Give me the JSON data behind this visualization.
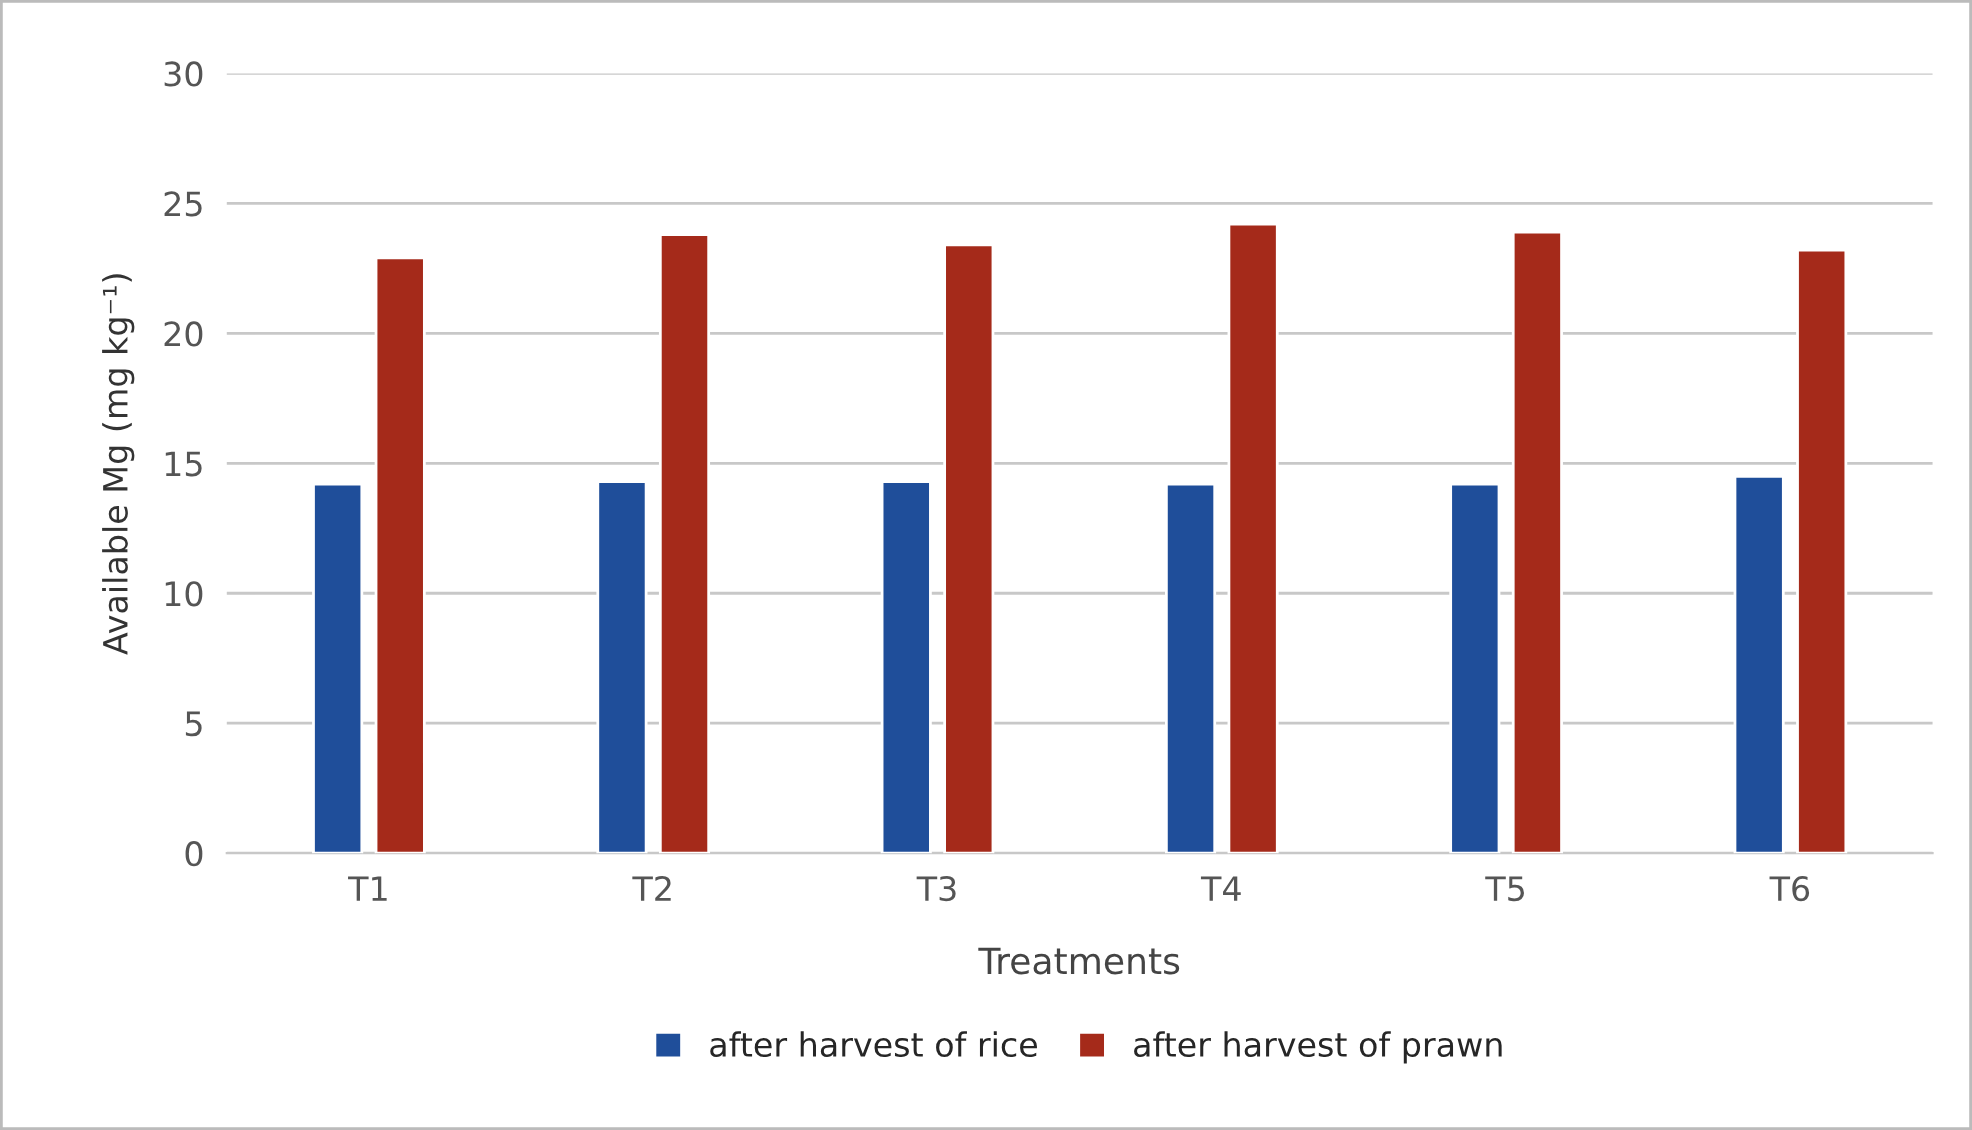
{
  "chart_data": {
    "type": "bar",
    "xlabel": "Treatments",
    "ylabel": "Available Mg (mg kg⁻¹)",
    "categories": [
      "T1",
      "T2",
      "T3",
      "T4",
      "T5",
      "T6"
    ],
    "series": [
      {
        "name": "after harvest of rice",
        "color": "#1f4e9a",
        "values": [
          14.2,
          14.3,
          14.3,
          14.2,
          14.2,
          14.5
        ]
      },
      {
        "name": "after harvest of prawn",
        "color": "#a52a1a",
        "values": [
          22.9,
          23.8,
          23.4,
          24.2,
          23.9,
          23.2
        ]
      }
    ],
    "ylim": [
      0,
      30
    ],
    "yticks": [
      0,
      5,
      10,
      15,
      20,
      25,
      30
    ],
    "grid": "y",
    "legend": "bottom"
  }
}
